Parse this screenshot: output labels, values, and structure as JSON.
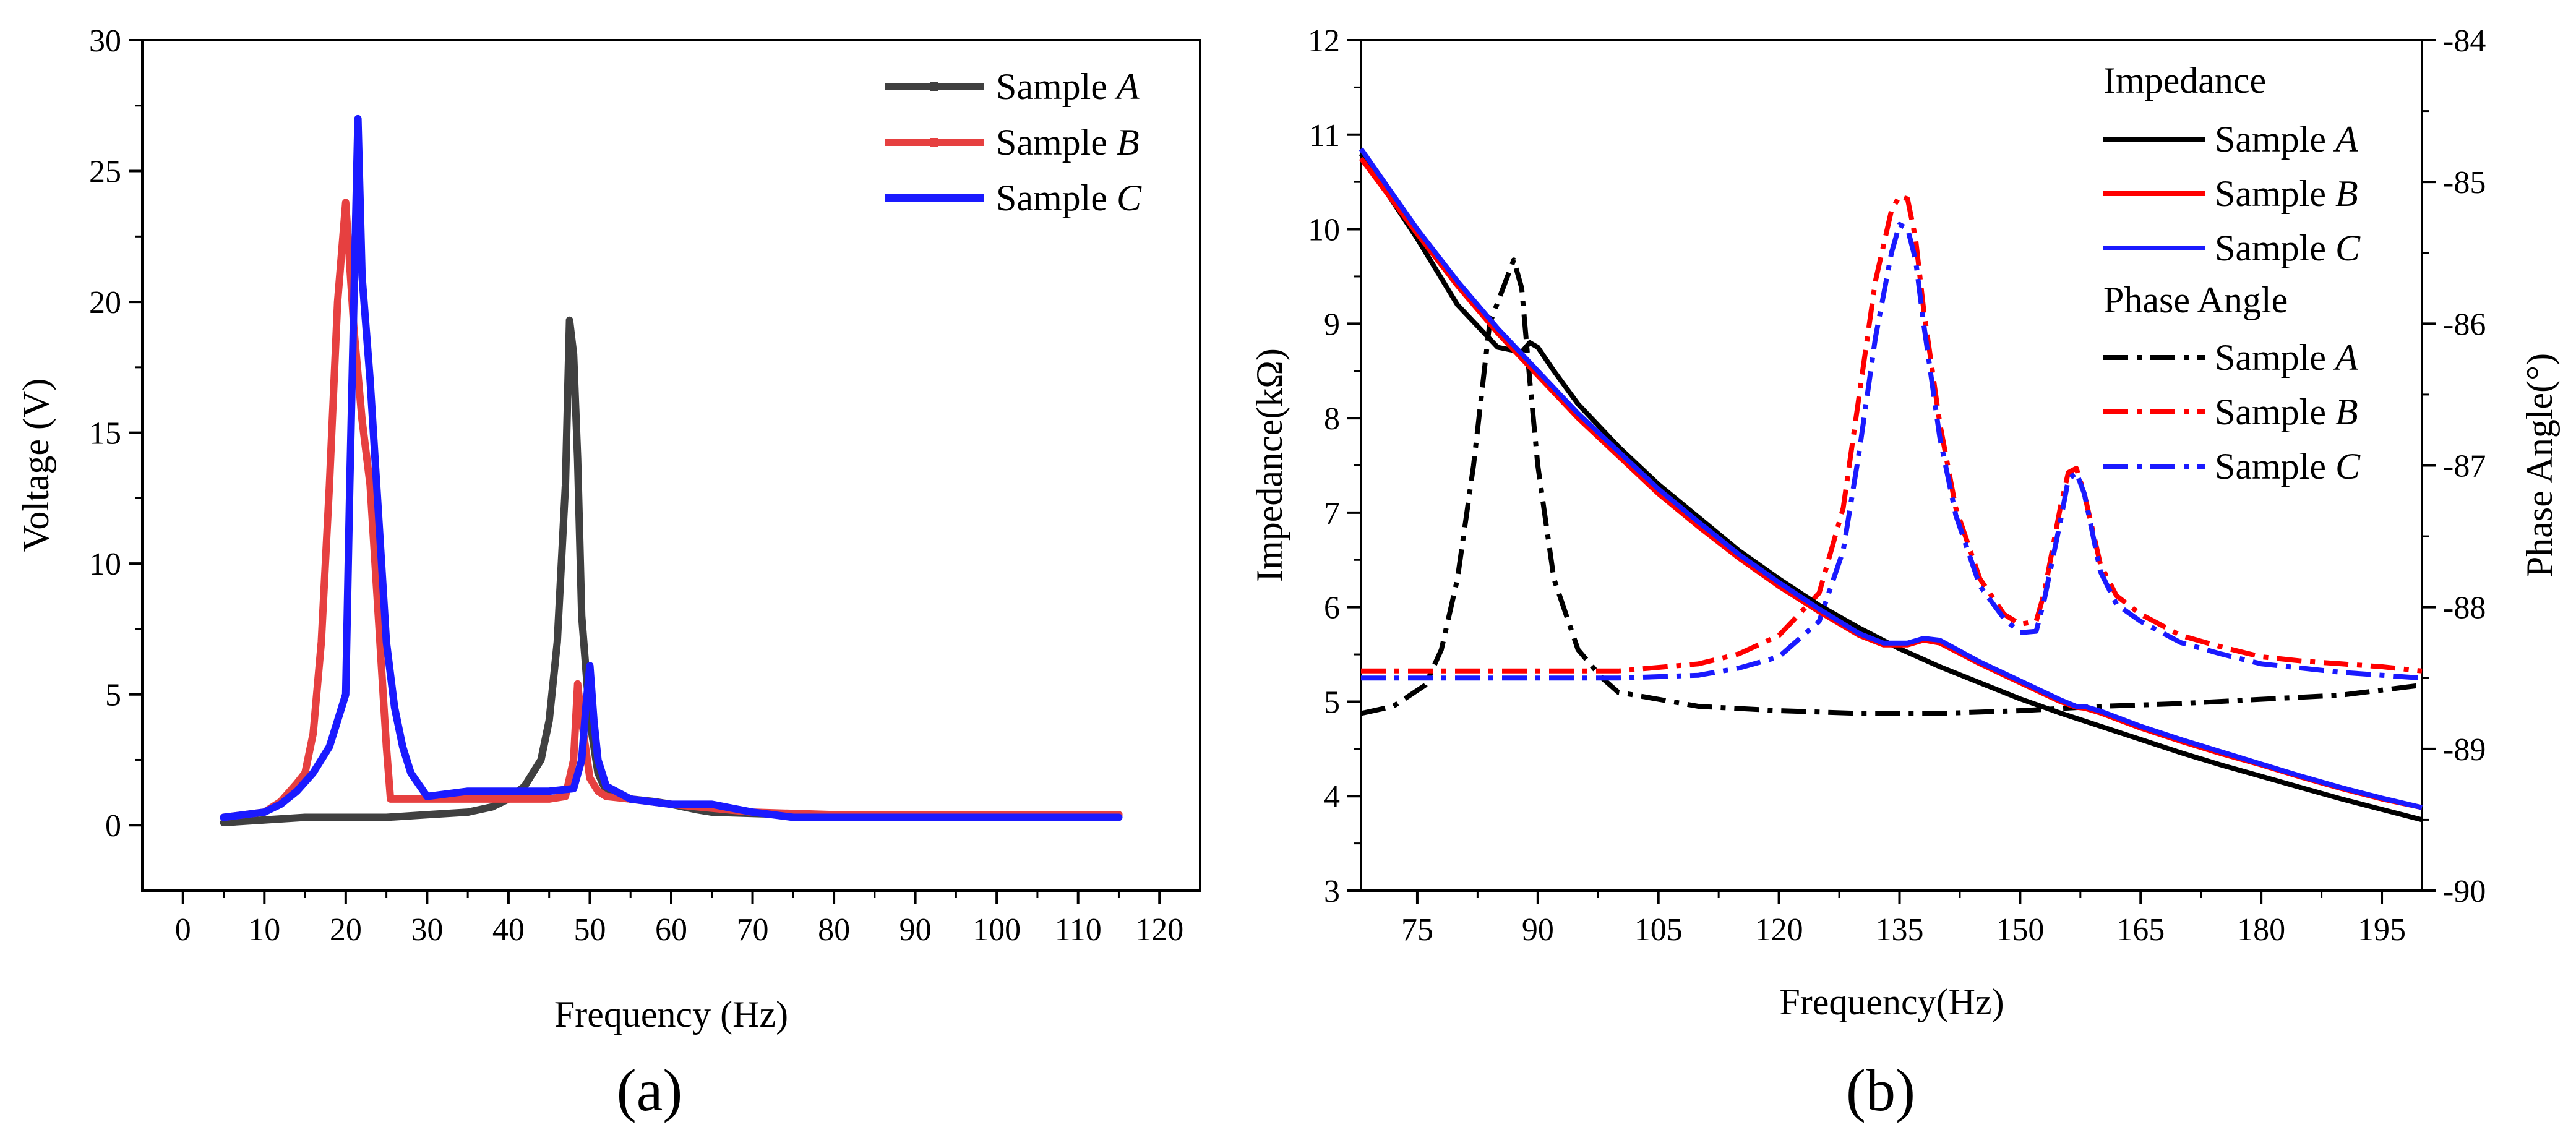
{
  "chart_data": [
    {
      "type": "line",
      "panel_label": "(a)",
      "xlabel": "Frequency (Hz)",
      "ylabel": "Voltage (V)",
      "xlim": [
        -5,
        125
      ],
      "ylim": [
        -2.5,
        30
      ],
      "xticks": [
        "0",
        "10",
        "20",
        "30",
        "40",
        "50",
        "60",
        "70",
        "80",
        "90",
        "100",
        "110",
        "120"
      ],
      "yticks": [
        "0",
        "5",
        "10",
        "15",
        "20",
        "25",
        "30"
      ],
      "legend_position": "top-right",
      "series": [
        {
          "name": "Sample A",
          "label_prefix": "Sample ",
          "label_italic": "A",
          "color": "#404040",
          "x": [
            5,
            10,
            15,
            20,
            25,
            30,
            35,
            38,
            40,
            42,
            44,
            45,
            46,
            47,
            47.5,
            48,
            48.5,
            49,
            50,
            51,
            52,
            53,
            55,
            58,
            60,
            63,
            65,
            70,
            75,
            80,
            90,
            100,
            110,
            115
          ],
          "y": [
            0.1,
            0.2,
            0.3,
            0.3,
            0.3,
            0.4,
            0.5,
            0.7,
            1.0,
            1.5,
            2.5,
            4.0,
            7.0,
            13.0,
            19.3,
            18.0,
            14.0,
            8.0,
            4.0,
            2.0,
            1.3,
            1.1,
            1.0,
            0.9,
            0.8,
            0.6,
            0.5,
            0.45,
            0.4,
            0.4,
            0.4,
            0.4,
            0.4,
            0.4
          ]
        },
        {
          "name": "Sample B",
          "label_prefix": "Sample ",
          "label_italic": "B",
          "color": "#e64040",
          "x": [
            5,
            10,
            12,
            14,
            15,
            16,
            17,
            18,
            19,
            20,
            21,
            22,
            23,
            24,
            25,
            25.5,
            26,
            30,
            35,
            40,
            45,
            47,
            48,
            48.5,
            49,
            50,
            51,
            52,
            55,
            60,
            70,
            80,
            90,
            100,
            110,
            115
          ],
          "y": [
            0.3,
            0.5,
            0.9,
            1.6,
            2.0,
            3.5,
            7.0,
            13.0,
            20.0,
            23.8,
            19.0,
            15.5,
            13.0,
            8.0,
            3.0,
            1.0,
            1.0,
            1.0,
            1.0,
            1.0,
            1.0,
            1.1,
            2.5,
            5.4,
            4.0,
            1.8,
            1.3,
            1.1,
            1.0,
            0.8,
            0.5,
            0.4,
            0.4,
            0.4,
            0.4,
            0.4
          ]
        },
        {
          "name": "Sample C",
          "label_prefix": "Sample ",
          "label_italic": "C",
          "color": "#1a1aff",
          "x": [
            5,
            10,
            12,
            14,
            16,
            18,
            19,
            20,
            20.5,
            21,
            21.5,
            22,
            23,
            24,
            25,
            26,
            27,
            28,
            30,
            35,
            40,
            45,
            48,
            49,
            49.5,
            50,
            50.5,
            51,
            52,
            55,
            60,
            65,
            70,
            75,
            80,
            90,
            100,
            110,
            115
          ],
          "y": [
            0.3,
            0.5,
            0.8,
            1.3,
            2.0,
            3.0,
            4.0,
            5.0,
            13.0,
            20.0,
            27.0,
            21.0,
            17.0,
            12.0,
            7.0,
            4.5,
            3.0,
            2.0,
            1.1,
            1.3,
            1.3,
            1.3,
            1.4,
            2.5,
            4.5,
            6.1,
            4.0,
            2.5,
            1.5,
            1.0,
            0.8,
            0.8,
            0.5,
            0.3,
            0.3,
            0.3,
            0.3,
            0.3,
            0.3
          ]
        }
      ]
    },
    {
      "type": "line",
      "panel_label": "(b)",
      "xlabel": "Frequency(Hz)",
      "ylabel": "Impedance(kΩ)",
      "y2label": "Phase Angle(°)",
      "xlim": [
        68,
        200
      ],
      "ylim": [
        3,
        12
      ],
      "y2lim": [
        -90,
        -84
      ],
      "xticks": [
        "75",
        "90",
        "105",
        "120",
        "135",
        "150",
        "165",
        "180",
        "195"
      ],
      "yticks": [
        "3",
        "4",
        "5",
        "6",
        "7",
        "8",
        "9",
        "10",
        "11",
        "12"
      ],
      "y2ticks": [
        "-90",
        "-89",
        "-88",
        "-87",
        "-86",
        "-85",
        "-84"
      ],
      "legend_position": "top-right",
      "legend_headers": [
        "Impedance",
        "Phase Angle"
      ],
      "impedance_series": [
        {
          "name": "Sample A",
          "label_prefix": "Sample ",
          "label_italic": "A",
          "color": "#000000",
          "x": [
            68,
            75,
            80,
            85,
            88,
            89,
            90,
            92,
            95,
            100,
            105,
            110,
            115,
            120,
            125,
            130,
            135,
            140,
            145,
            150,
            155,
            160,
            165,
            170,
            175,
            180,
            185,
            190,
            195,
            200
          ],
          "y": [
            10.8,
            9.9,
            9.2,
            8.75,
            8.7,
            8.8,
            8.75,
            8.5,
            8.15,
            7.7,
            7.3,
            6.95,
            6.6,
            6.3,
            6.02,
            5.78,
            5.56,
            5.37,
            5.2,
            5.03,
            4.88,
            4.74,
            4.6,
            4.46,
            4.33,
            4.21,
            4.09,
            3.97,
            3.86,
            3.75
          ]
        },
        {
          "name": "Sample B",
          "label_prefix": "Sample ",
          "label_italic": "B",
          "color": "#ff0000",
          "x": [
            68,
            75,
            80,
            85,
            90,
            95,
            100,
            105,
            110,
            115,
            120,
            125,
            130,
            133,
            136,
            138,
            140,
            145,
            150,
            155,
            157,
            158,
            160,
            165,
            170,
            175,
            180,
            185,
            190,
            195,
            200
          ],
          "y": [
            10.75,
            9.95,
            9.4,
            8.9,
            8.45,
            8.0,
            7.6,
            7.2,
            6.85,
            6.52,
            6.22,
            5.95,
            5.7,
            5.6,
            5.6,
            5.65,
            5.62,
            5.4,
            5.2,
            5.0,
            4.94,
            4.93,
            4.88,
            4.72,
            4.58,
            4.45,
            4.33,
            4.2,
            4.08,
            3.97,
            3.88
          ]
        },
        {
          "name": "Sample C",
          "label_prefix": "Sample ",
          "label_italic": "C",
          "color": "#1a1aff",
          "x": [
            68,
            75,
            80,
            85,
            90,
            95,
            100,
            105,
            110,
            115,
            120,
            125,
            130,
            133,
            136,
            138,
            140,
            145,
            150,
            155,
            157,
            158,
            160,
            165,
            170,
            175,
            180,
            185,
            190,
            195,
            200
          ],
          "y": [
            10.85,
            10.0,
            9.45,
            8.95,
            8.5,
            8.05,
            7.65,
            7.25,
            6.9,
            6.56,
            6.26,
            5.98,
            5.72,
            5.62,
            5.62,
            5.67,
            5.65,
            5.42,
            5.22,
            5.02,
            4.95,
            4.95,
            4.9,
            4.74,
            4.6,
            4.47,
            4.34,
            4.21,
            4.09,
            3.98,
            3.88
          ]
        }
      ],
      "phase_series": [
        {
          "name": "Sample A",
          "label_prefix": "Sample ",
          "label_italic": "A",
          "color": "#000000",
          "x": [
            68,
            72,
            76,
            78,
            80,
            82,
            84,
            86,
            87,
            88,
            89,
            90,
            92,
            95,
            98,
            100,
            105,
            110,
            120,
            130,
            140,
            150,
            160,
            170,
            180,
            190,
            200
          ],
          "y": [
            -88.75,
            -88.7,
            -88.55,
            -88.3,
            -87.8,
            -87.0,
            -86.0,
            -85.7,
            -85.55,
            -85.75,
            -86.4,
            -87.0,
            -87.8,
            -88.3,
            -88.5,
            -88.6,
            -88.65,
            -88.7,
            -88.73,
            -88.75,
            -88.75,
            -88.73,
            -88.7,
            -88.68,
            -88.65,
            -88.62,
            -88.55
          ]
        },
        {
          "name": "Sample B",
          "label_prefix": "Sample ",
          "label_italic": "B",
          "color": "#ff0000",
          "x": [
            68,
            80,
            90,
            100,
            110,
            115,
            120,
            125,
            128,
            130,
            132,
            134,
            135,
            136,
            137,
            138,
            140,
            142,
            145,
            148,
            150,
            152,
            153,
            155,
            156,
            157,
            158,
            160,
            162,
            165,
            170,
            175,
            180,
            185,
            190,
            195,
            200
          ],
          "y": [
            -88.45,
            -88.45,
            -88.45,
            -88.45,
            -88.4,
            -88.33,
            -88.2,
            -87.9,
            -87.3,
            -86.5,
            -85.7,
            -85.2,
            -85.1,
            -85.12,
            -85.4,
            -85.9,
            -86.7,
            -87.3,
            -87.8,
            -88.05,
            -88.12,
            -88.1,
            -87.9,
            -87.3,
            -87.05,
            -87.02,
            -87.2,
            -87.7,
            -87.92,
            -88.05,
            -88.2,
            -88.28,
            -88.35,
            -88.38,
            -88.4,
            -88.42,
            -88.45
          ]
        },
        {
          "name": "Sample C",
          "label_prefix": "Sample ",
          "label_italic": "C",
          "color": "#1a1aff",
          "x": [
            68,
            80,
            90,
            100,
            110,
            115,
            120,
            125,
            128,
            130,
            132,
            134,
            135,
            136,
            137,
            138,
            140,
            142,
            145,
            148,
            150,
            152,
            153,
            155,
            156,
            157,
            158,
            160,
            162,
            165,
            170,
            175,
            180,
            185,
            190,
            195,
            200
          ],
          "y": [
            -88.5,
            -88.5,
            -88.5,
            -88.5,
            -88.48,
            -88.43,
            -88.35,
            -88.1,
            -87.6,
            -86.9,
            -86.1,
            -85.5,
            -85.3,
            -85.33,
            -85.55,
            -86.0,
            -86.8,
            -87.35,
            -87.85,
            -88.08,
            -88.18,
            -88.17,
            -87.95,
            -87.4,
            -87.1,
            -87.05,
            -87.2,
            -87.75,
            -87.98,
            -88.1,
            -88.25,
            -88.33,
            -88.4,
            -88.43,
            -88.46,
            -88.48,
            -88.5
          ]
        }
      ]
    }
  ]
}
